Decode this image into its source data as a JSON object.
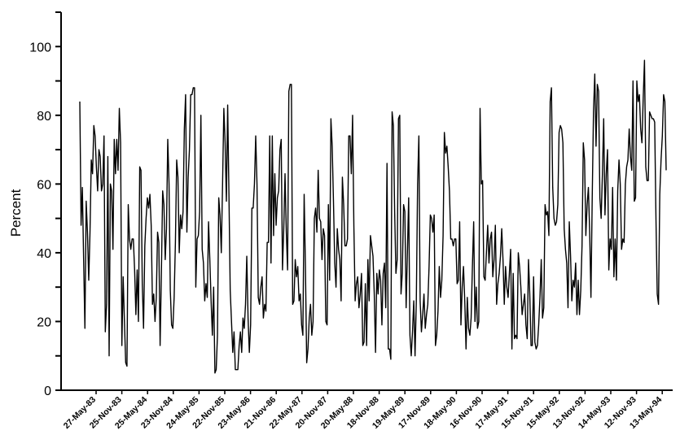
{
  "chart_data": {
    "type": "line",
    "title": "",
    "xlabel": "",
    "ylabel": "Percent",
    "ylim": [
      0,
      110
    ],
    "yticks": [
      0,
      20,
      40,
      60,
      80,
      100
    ],
    "grid": false,
    "legend": "none",
    "line_color": "#000000",
    "xtick_labels": [
      "27-May-83",
      "25-Nov-83",
      "25-May-84",
      "23-Nov-84",
      "24-May-85",
      "22-Nov-85",
      "23-May-86",
      "21-Nov-86",
      "22-May-87",
      "20-Nov-87",
      "20-May-88",
      "18-Nov-88",
      "19-May-89",
      "17-Nov-89",
      "18-May-90",
      "16-Nov-90",
      "17-May-91",
      "15-Nov-91",
      "15-May-92",
      "13-Nov-92",
      "14-May-93",
      "12-Nov-93",
      "13-May-94"
    ],
    "series": [
      {
        "values": [
          84,
          48,
          59,
          38,
          18,
          55,
          46,
          32,
          46,
          67,
          63,
          77,
          74,
          65,
          58,
          70,
          68,
          58,
          60,
          74,
          17,
          25,
          68,
          10,
          60,
          58,
          41,
          73,
          63,
          73,
          64,
          82,
          72,
          13,
          33,
          20,
          8,
          7,
          54,
          44,
          41,
          44,
          44,
          35,
          22,
          35,
          20,
          65,
          64,
          31,
          18,
          42,
          50,
          56,
          53,
          57,
          48,
          25,
          28,
          20,
          27,
          46,
          43,
          13,
          34,
          58,
          54,
          38,
          47,
          73,
          60,
          29,
          19,
          18,
          27,
          43,
          67,
          62,
          40,
          51,
          47,
          52,
          76,
          86,
          46,
          62,
          70,
          86,
          86,
          88,
          88,
          30,
          44,
          45,
          52,
          80,
          41,
          37,
          26,
          31,
          27,
          49,
          38,
          26,
          16,
          30,
          5,
          6,
          16,
          56,
          51,
          40,
          60,
          82,
          72,
          55,
          83,
          57,
          29,
          20,
          11,
          17,
          6,
          6,
          6,
          13,
          17,
          11,
          21,
          18,
          25,
          39,
          21,
          11,
          19,
          53,
          53,
          60,
          74,
          60,
          27,
          25,
          30,
          33,
          21,
          25,
          23,
          43,
          43,
          74,
          37,
          74,
          45,
          63,
          48,
          56,
          58,
          70,
          73,
          35,
          47,
          63,
          46,
          35,
          87,
          89,
          89,
          25,
          26,
          38,
          33,
          36,
          26,
          28,
          19,
          16,
          57,
          36,
          8,
          12,
          21,
          25,
          16,
          20,
          50,
          53,
          46,
          64,
          50,
          49,
          38,
          47,
          45,
          20,
          19,
          54,
          32,
          79,
          71,
          55,
          37,
          30,
          47,
          41,
          38,
          26,
          62,
          54,
          42,
          42,
          44,
          74,
          74,
          63,
          80,
          48,
          26,
          31,
          33,
          24,
          28,
          34,
          13,
          14,
          31,
          13,
          38,
          26,
          45,
          42,
          39,
          28,
          11,
          34,
          28,
          35,
          32,
          19,
          34,
          37,
          24,
          66,
          12,
          12,
          9,
          81,
          77,
          52,
          34,
          38,
          79,
          80,
          28,
          34,
          54,
          52,
          24,
          40,
          56,
          16,
          10,
          17,
          26,
          10,
          26,
          60,
          74,
          26,
          17,
          22,
          28,
          18,
          22,
          25,
          36,
          51,
          50,
          46,
          51,
          13,
          16,
          23,
          36,
          27,
          32,
          45,
          75,
          69,
          71,
          65,
          58,
          44,
          44,
          42,
          44,
          44,
          31,
          32,
          49,
          19,
          30,
          36,
          26,
          12,
          27,
          18,
          16,
          21,
          36,
          49,
          20,
          30,
          18,
          20,
          82,
          60,
          61,
          33,
          32,
          40,
          48,
          37,
          44,
          46,
          33,
          38,
          48,
          25,
          31,
          34,
          39,
          47,
          38,
          25,
          36,
          30,
          27,
          34,
          41,
          12,
          34,
          15,
          16,
          15,
          40,
          36,
          30,
          22,
          25,
          28,
          19,
          15,
          38,
          28,
          13,
          13,
          33,
          14,
          12,
          13,
          19,
          27,
          38,
          21,
          24,
          54,
          51,
          52,
          45,
          84,
          88,
          59,
          50,
          48,
          49,
          54,
          75,
          77,
          76,
          72,
          47,
          41,
          37,
          24,
          49,
          39,
          26,
          32,
          30,
          37,
          22,
          32,
          22,
          29,
          42,
          72,
          67,
          45,
          54,
          59,
          46,
          27,
          56,
          81,
          92,
          71,
          89,
          87,
          56,
          50,
          63,
          79,
          51,
          63,
          70,
          35,
          44,
          41,
          59,
          33,
          44,
          32,
          58,
          67,
          60,
          41,
          44,
          43,
          60,
          65,
          67,
          76,
          68,
          64,
          90,
          55,
          56,
          90,
          84,
          86,
          76,
          72,
          85,
          96,
          65,
          61,
          61,
          81,
          80,
          79,
          79,
          78,
          50,
          28,
          25,
          57,
          67,
          74,
          86,
          84,
          64
        ]
      }
    ]
  }
}
